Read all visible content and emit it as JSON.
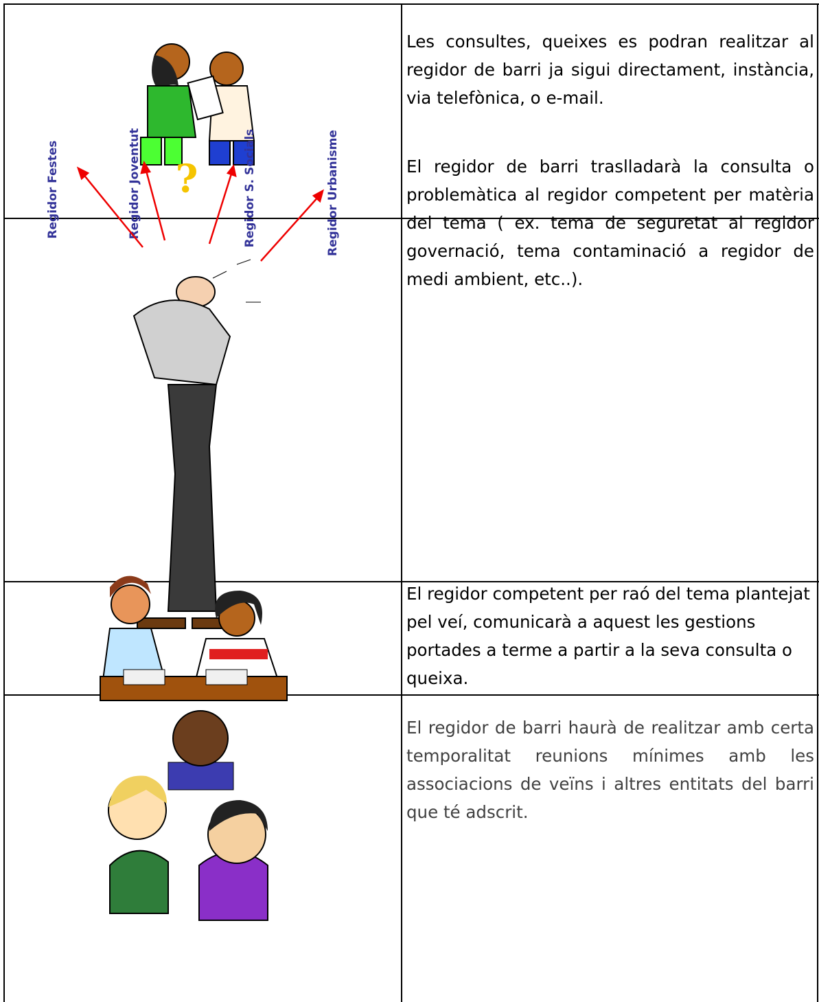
{
  "rows": [
    {
      "text": "Les consultes, queixes es podran realitzar al regidor de barri ja sigui directament, instància, via telefònica, o e-mail."
    },
    {
      "labels": [
        "Regidor Festes",
        "Regidor Joventut",
        "Regidor S. Socials",
        "Regidor Urbanisme"
      ],
      "mark": "?",
      "text": "El regidor de barri traslladarà la consulta o problemàtica al regidor competent per matèria del tema ( ex. tema de seguretat al regidor governació, tema contaminació  a regidor de medi ambient, etc..)."
    },
    {
      "text": "El regidor competent per raó del tema plantejat pel veí,  comunicarà a aquest les gestions portades a terme a partir a la seva consulta o queixa."
    },
    {
      "text": "El regidor de barri haurà de realitzar amb certa temporalitat reunions mínimes amb les associacions de veïns i altres entitats del barri que té adscrit."
    }
  ]
}
